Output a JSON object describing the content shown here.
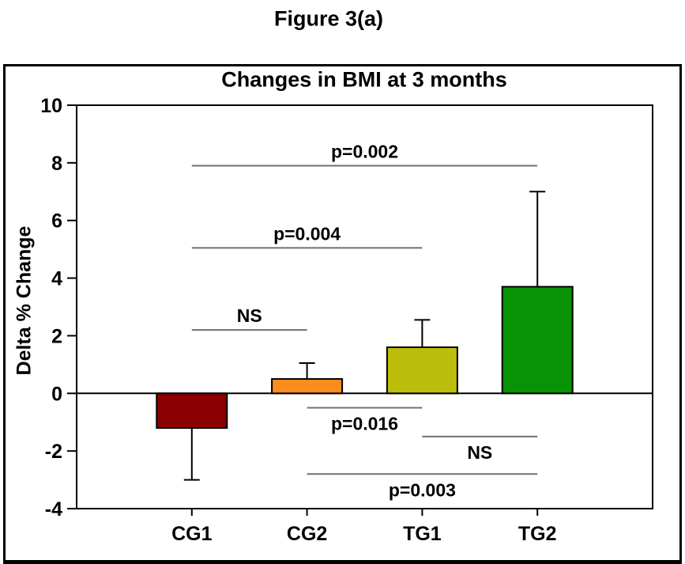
{
  "figure_label": "Figure 3(a)",
  "colors": {
    "axis": "#000000",
    "bar_outline": "#000000",
    "annotation_line": "#707070",
    "background": "#ffffff"
  },
  "chart_data": {
    "type": "bar",
    "title": "Changes in BMI at 3 months",
    "ylabel": "Delta % Change",
    "xlabel": "",
    "categories": [
      "CG1",
      "CG2",
      "TG1",
      "TG2"
    ],
    "values": [
      -1.2,
      0.5,
      1.6,
      3.7
    ],
    "error_bar_ends": [
      -3.0,
      1.05,
      2.55,
      7.0
    ],
    "bar_colors": [
      "#8B0000",
      "#FB8C20",
      "#BDBE0B",
      "#089307"
    ],
    "ylim": [
      -4,
      10
    ],
    "yticks": [
      10,
      8,
      6,
      4,
      2,
      0,
      -2,
      -4
    ],
    "grid": false,
    "legend": "none",
    "annotations": [
      {
        "label": "p=0.002",
        "from": "CG1",
        "to": "TG2",
        "y": 7.9,
        "label_side": "above"
      },
      {
        "label": "p=0.004",
        "from": "CG1",
        "to": "TG1",
        "y": 5.05,
        "label_side": "above"
      },
      {
        "label": "NS",
        "from": "CG1",
        "to": "CG2",
        "y": 2.2,
        "label_side": "above"
      },
      {
        "label": "p=0.016",
        "from": "CG2",
        "to": "TG1",
        "y": -0.5,
        "label_side": "below"
      },
      {
        "label": "NS",
        "from": "TG1",
        "to": "TG2",
        "y": -1.5,
        "label_side": "below"
      },
      {
        "label": "p=0.003",
        "from": "CG2",
        "to": "TG2",
        "y": -2.8,
        "label_side": "below"
      }
    ]
  }
}
